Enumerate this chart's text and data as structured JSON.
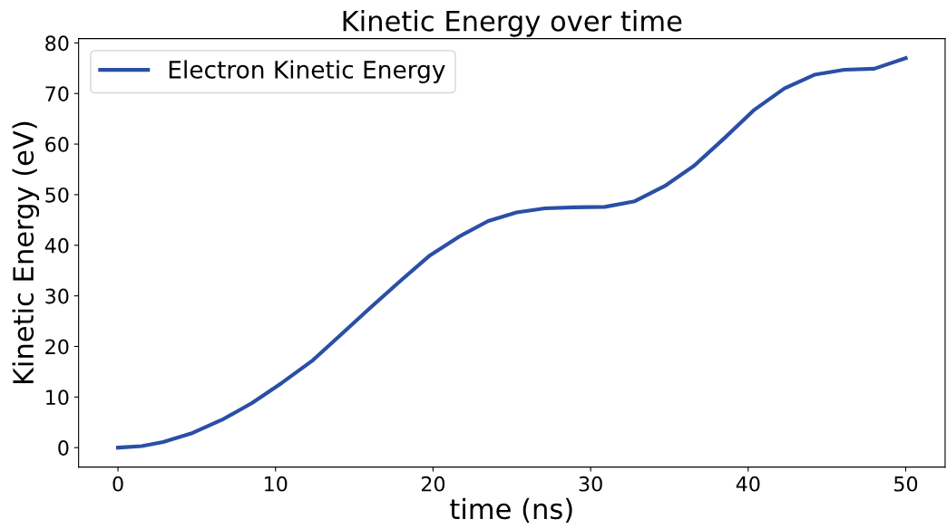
{
  "chart_data": {
    "type": "line",
    "title": "Kinetic Energy over time",
    "xlabel": "time (ns)",
    "ylabel": "Kinetic Energy (eV)",
    "x": [
      0,
      1.5,
      2.86,
      4.74,
      6.6,
      8.5,
      10.4,
      12.3,
      14.1,
      16.0,
      17.9,
      19.8,
      21.7,
      23.5,
      25.3,
      27.1,
      29.0,
      30.9,
      32.8,
      34.7,
      36.6,
      38.5,
      40.4,
      42.3,
      44.2,
      46.1,
      48.0,
      50.0
    ],
    "series": [
      {
        "name": "Electron Kinetic Energy",
        "color": "#2a4fa5",
        "values": [
          0,
          0.3,
          1.1,
          2.9,
          5.5,
          8.8,
          12.8,
          17.1,
          22.2,
          27.6,
          32.9,
          38.0,
          41.8,
          44.8,
          46.5,
          47.3,
          47.5,
          47.6,
          48.7,
          51.7,
          55.8,
          61.2,
          66.8,
          71.0,
          73.7,
          74.7,
          74.9,
          77.0
        ]
      }
    ],
    "xlim": [
      -2.5,
      52.5
    ],
    "ylim": [
      -3.85,
      80.85
    ],
    "xticks": [
      0,
      10,
      20,
      30,
      40,
      50
    ],
    "yticks": [
      0,
      10,
      20,
      30,
      40,
      50,
      60,
      70,
      80
    ],
    "grid": false,
    "legend": "top left",
    "marker": "none",
    "line_style": "solid"
  }
}
